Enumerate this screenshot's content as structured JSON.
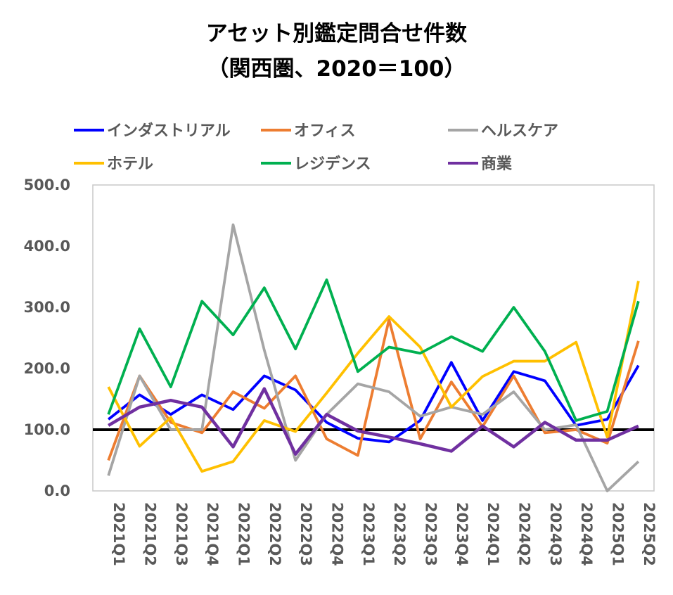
{
  "chart_data": {
    "type": "line",
    "title": "アセット別鑑定問合せ件数",
    "subtitle": "（関西圏、2020＝100）",
    "xlabel": "",
    "ylabel": "",
    "ylim": [
      0,
      500
    ],
    "yticks": [
      "0.0",
      "100.0",
      "200.0",
      "300.0",
      "400.0",
      "500.0"
    ],
    "reference_line": 100,
    "grid": false,
    "legend_position": "top",
    "categories": [
      "2021Q1",
      "2021Q2",
      "2021Q3",
      "2021Q4",
      "2022Q1",
      "2022Q2",
      "2022Q3",
      "2022Q4",
      "2023Q1",
      "2023Q2",
      "2023Q3",
      "2023Q4",
      "2024Q1",
      "2024Q2",
      "2024Q3",
      "2024Q4",
      "2025Q1",
      "2025Q2"
    ],
    "series": [
      {
        "name": "インダストリアル",
        "color": "#0000FF",
        "values": [
          117,
          157,
          125,
          157,
          133,
          188,
          165,
          112,
          86,
          80,
          115,
          210,
          115,
          195,
          180,
          107,
          117,
          205
        ]
      },
      {
        "name": "オフィス",
        "color": "#ED7D31",
        "values": [
          50,
          188,
          112,
          95,
          162,
          135,
          188,
          85,
          58,
          280,
          85,
          178,
          105,
          188,
          95,
          100,
          78,
          245
        ]
      },
      {
        "name": "ヘルスケア",
        "color": "#A5A5A5",
        "values": [
          25,
          188,
          100,
          100,
          435,
          230,
          50,
          125,
          175,
          162,
          122,
          137,
          125,
          162,
          100,
          108,
          0,
          48
        ]
      },
      {
        "name": "ホテル",
        "color": "#FFC000",
        "values": [
          170,
          73,
          120,
          32,
          48,
          115,
          97,
          160,
          225,
          285,
          235,
          137,
          187,
          212,
          212,
          243,
          88,
          343
        ]
      },
      {
        "name": "レジデンス",
        "color": "#00B050",
        "values": [
          125,
          265,
          170,
          310,
          255,
          332,
          232,
          345,
          195,
          235,
          225,
          252,
          228,
          300,
          228,
          115,
          130,
          310
        ]
      },
      {
        "name": "商業",
        "color": "#7030A0",
        "values": [
          107,
          137,
          148,
          137,
          72,
          167,
          60,
          125,
          98,
          88,
          77,
          65,
          106,
          72,
          112,
          83,
          83,
          106
        ]
      }
    ]
  }
}
